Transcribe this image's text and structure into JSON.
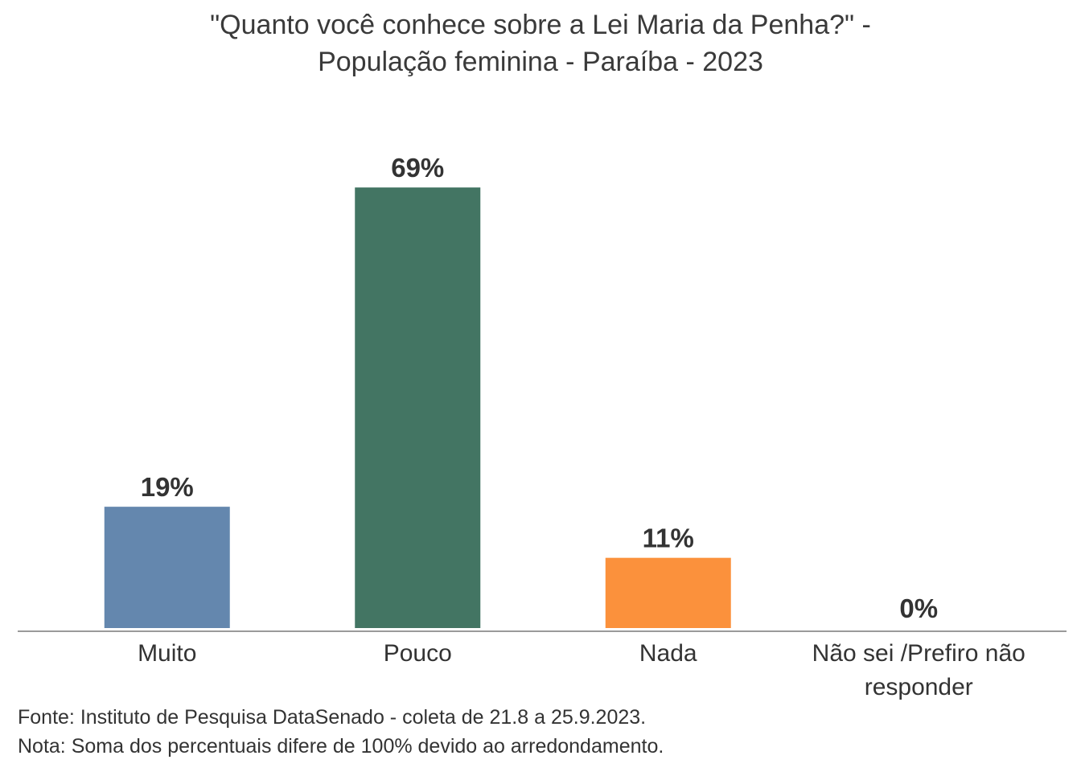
{
  "chart_data": {
    "type": "bar",
    "title_lines": [
      "\"Quanto você conhece sobre a Lei Maria da Penha?\" -",
      "População feminina - Paraíba - 2023"
    ],
    "categories": [
      "Muito",
      "Pouco",
      "Nada",
      "Não sei /Prefiro não responder"
    ],
    "category_label_lines": [
      [
        "Muito"
      ],
      [
        "Pouco"
      ],
      [
        "Nada"
      ],
      [
        "Não sei /Prefiro não",
        "responder"
      ]
    ],
    "values": [
      19,
      69,
      11,
      0
    ],
    "value_labels": [
      "19%",
      "69%",
      "11%",
      "0%"
    ],
    "colors": [
      "#6487ae",
      "#437563",
      "#fb913c",
      "#9a9a9a"
    ],
    "ylim": [
      0,
      100
    ],
    "grid": false,
    "legend": "none",
    "xlabel": "",
    "ylabel": ""
  },
  "footer": {
    "source": "Fonte: Instituto de Pesquisa DataSenado - coleta de 21.8 a 25.9.2023.",
    "note": "Nota: Soma dos percentuais difere de 100% devido ao arredondamento."
  }
}
